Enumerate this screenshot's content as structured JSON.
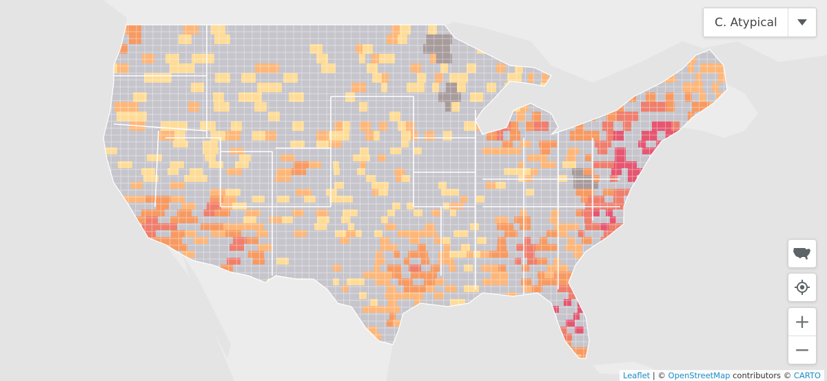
{
  "filter": {
    "selected": "C. Atypical"
  },
  "controls": {
    "usa_icon": "usa-map-icon",
    "locate_icon": "crosshair-icon",
    "zoom_in": "+",
    "zoom_out": "−"
  },
  "attribution": {
    "leaflet": "Leaflet",
    "sep": " | © ",
    "osm": "OpenStreetMap",
    "mid": " contributors © ",
    "carto": "CARTO"
  },
  "colors": {
    "land": "#c6c5cc",
    "light": "#fedc98",
    "mid": "#fdb77a",
    "orange": "#f79a62",
    "red": "#ef7e6d",
    "crimson": "#e65670",
    "brown": "#a79b9c",
    "ocean": "#e4e4e4",
    "outside": "#ececec"
  }
}
